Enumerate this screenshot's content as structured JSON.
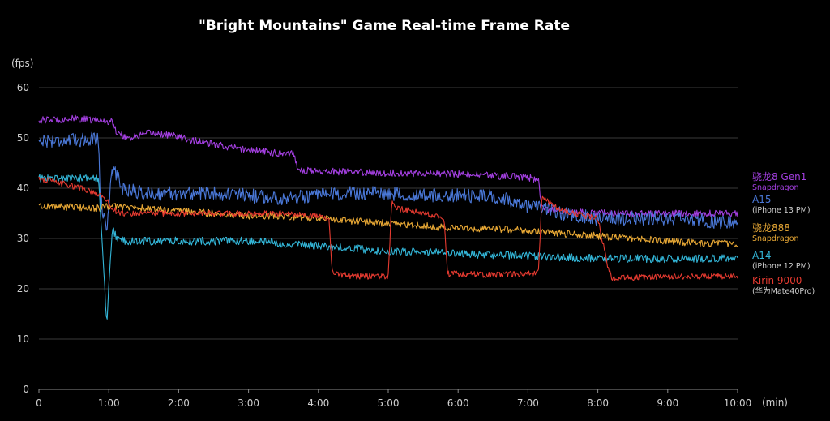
{
  "chart_data": {
    "type": "line",
    "title": "\"Bright Mountains\" Game Real-time Frame Rate",
    "ylabel": "(fps)",
    "xlabel": "(min)",
    "xlim": [
      0,
      10
    ],
    "ylim": [
      0,
      60
    ],
    "x_ticks": [
      {
        "value": 0,
        "label": "0"
      },
      {
        "value": 1,
        "label": "1:00"
      },
      {
        "value": 2,
        "label": "2:00"
      },
      {
        "value": 3,
        "label": "3:00"
      },
      {
        "value": 4,
        "label": "4:00"
      },
      {
        "value": 5,
        "label": "5:00"
      },
      {
        "value": 6,
        "label": "6:00"
      },
      {
        "value": 7,
        "label": "7:00"
      },
      {
        "value": 8,
        "label": "8:00"
      },
      {
        "value": 9,
        "label": "9:00"
      },
      {
        "value": 10,
        "label": "10:00"
      }
    ],
    "y_ticks": [
      0,
      10,
      20,
      30,
      40,
      50,
      60
    ],
    "grid": "horizontal",
    "legend_position": "right",
    "series": [
      {
        "name": "骁龙8 Gen1",
        "sub": "Snapdragon",
        "color": "#a33fe0",
        "points": [
          [
            0,
            53.5
          ],
          [
            0.5,
            53.8
          ],
          [
            0.85,
            53.5
          ],
          [
            1.05,
            53.2
          ],
          [
            1.1,
            51.5
          ],
          [
            1.2,
            50.5
          ],
          [
            1.3,
            50
          ],
          [
            1.6,
            51
          ],
          [
            1.9,
            50.5
          ],
          [
            2.2,
            49.5
          ],
          [
            2.5,
            48.7
          ],
          [
            2.8,
            48
          ],
          [
            3.1,
            47.5
          ],
          [
            3.4,
            47
          ],
          [
            3.65,
            47
          ],
          [
            3.7,
            44
          ],
          [
            3.8,
            43.5
          ],
          [
            4.5,
            43.2
          ],
          [
            5.0,
            43
          ],
          [
            5.5,
            43
          ],
          [
            6.0,
            42.8
          ],
          [
            6.5,
            42.5
          ],
          [
            7.0,
            42.2
          ],
          [
            7.15,
            41.5
          ],
          [
            7.2,
            36
          ],
          [
            7.4,
            35.5
          ],
          [
            8.0,
            35
          ],
          [
            8.5,
            35
          ],
          [
            9.0,
            35
          ],
          [
            9.5,
            35
          ],
          [
            10.0,
            35
          ]
        ]
      },
      {
        "name": "A15",
        "sub": "(iPhone 13 PM)",
        "color": "#4a78d8",
        "points": [
          [
            0,
            49.5
          ],
          [
            0.5,
            49.5
          ],
          [
            0.85,
            50
          ],
          [
            0.88,
            38
          ],
          [
            0.92,
            35
          ],
          [
            0.97,
            32
          ],
          [
            1.05,
            44
          ],
          [
            1.1,
            43
          ],
          [
            1.2,
            40
          ],
          [
            1.5,
            39
          ],
          [
            2.0,
            39
          ],
          [
            2.5,
            39
          ],
          [
            3.0,
            38.5
          ],
          [
            3.5,
            38
          ],
          [
            4.0,
            38.5
          ],
          [
            4.5,
            39
          ],
          [
            5.0,
            39
          ],
          [
            5.5,
            38.5
          ],
          [
            6.0,
            38.5
          ],
          [
            6.5,
            38.5
          ],
          [
            7.0,
            36.5
          ],
          [
            7.5,
            35
          ],
          [
            8.0,
            34
          ],
          [
            8.5,
            34
          ],
          [
            9.0,
            34
          ],
          [
            9.5,
            33.5
          ],
          [
            10.0,
            33
          ]
        ]
      },
      {
        "name": "骁龙888",
        "sub": "Snapdragon",
        "color": "#e8a835",
        "points": [
          [
            0,
            36.5
          ],
          [
            0.5,
            36.2
          ],
          [
            0.9,
            36
          ],
          [
            1.0,
            36.5
          ],
          [
            1.5,
            36
          ],
          [
            2.0,
            35.5
          ],
          [
            2.5,
            35
          ],
          [
            3.0,
            34.5
          ],
          [
            3.5,
            34.5
          ],
          [
            4.0,
            34
          ],
          [
            4.5,
            33.5
          ],
          [
            5.0,
            33
          ],
          [
            5.5,
            32.5
          ],
          [
            6.0,
            32
          ],
          [
            6.5,
            32
          ],
          [
            7.0,
            31.5
          ],
          [
            7.5,
            31
          ],
          [
            8.0,
            30.5
          ],
          [
            8.5,
            30
          ],
          [
            9.0,
            29.5
          ],
          [
            9.5,
            29
          ],
          [
            10.0,
            29
          ]
        ]
      },
      {
        "name": "A14",
        "sub": "(iPhone 12 PM)",
        "color": "#33b6d8",
        "points": [
          [
            0,
            42
          ],
          [
            0.5,
            42
          ],
          [
            0.85,
            42
          ],
          [
            0.9,
            30
          ],
          [
            0.95,
            18
          ],
          [
            0.97,
            13
          ],
          [
            1.0,
            20
          ],
          [
            1.05,
            32
          ],
          [
            1.1,
            30.5
          ],
          [
            1.2,
            29.5
          ],
          [
            2.0,
            29.5
          ],
          [
            3.0,
            29.5
          ],
          [
            3.5,
            29
          ],
          [
            4.0,
            28.5
          ],
          [
            4.5,
            28
          ],
          [
            5.0,
            27.5
          ],
          [
            6.0,
            27
          ],
          [
            7.0,
            26.5
          ],
          [
            8.0,
            26
          ],
          [
            8.5,
            26
          ],
          [
            9.0,
            26
          ],
          [
            9.5,
            26
          ],
          [
            10.0,
            26
          ]
        ]
      },
      {
        "name": "Kirin 9000",
        "sub": "(华为Mate40Pro)",
        "color": "#e53a30",
        "points": [
          [
            0,
            42
          ],
          [
            0.3,
            41
          ],
          [
            0.6,
            40
          ],
          [
            0.9,
            38.5
          ],
          [
            1.0,
            37
          ],
          [
            1.1,
            35.5
          ],
          [
            1.15,
            35
          ],
          [
            2.0,
            35
          ],
          [
            3.0,
            35
          ],
          [
            3.5,
            35
          ],
          [
            4.0,
            34.5
          ],
          [
            4.15,
            34
          ],
          [
            4.2,
            23
          ],
          [
            4.5,
            22.5
          ],
          [
            5.0,
            22.5
          ],
          [
            5.05,
            37.5
          ],
          [
            5.1,
            36
          ],
          [
            5.5,
            35
          ],
          [
            5.8,
            34
          ],
          [
            5.85,
            23
          ],
          [
            6.5,
            22.8
          ],
          [
            7.15,
            23
          ],
          [
            7.2,
            38
          ],
          [
            7.5,
            35.5
          ],
          [
            8.0,
            34
          ],
          [
            8.15,
            24
          ],
          [
            8.2,
            22
          ],
          [
            9.0,
            22.5
          ],
          [
            9.5,
            22.5
          ],
          [
            10.0,
            22.5
          ]
        ]
      }
    ]
  }
}
